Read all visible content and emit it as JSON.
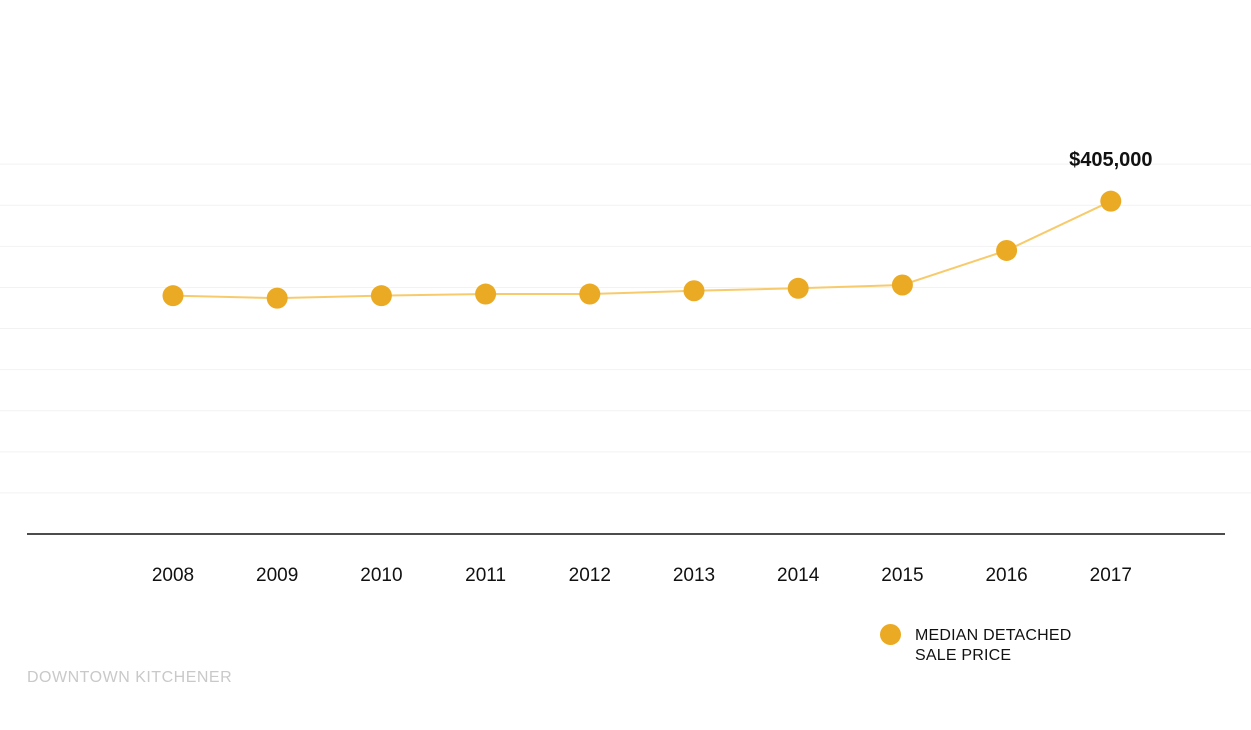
{
  "chart_data": {
    "type": "line",
    "categories": [
      "2008",
      "2009",
      "2010",
      "2011",
      "2012",
      "2013",
      "2014",
      "2015",
      "2016",
      "2017"
    ],
    "series": [
      {
        "name": "MEDIAN DETACHED SALE PRICE",
        "values": [
          290000,
          287000,
          290000,
          292000,
          292000,
          296000,
          299000,
          303000,
          345000,
          405000
        ]
      }
    ],
    "annotations": [
      {
        "category": "2017",
        "text": "$405,000"
      }
    ],
    "ylim": [
      0,
      550000
    ],
    "grid": true,
    "legend": "bottom-right",
    "xlabel": "",
    "ylabel": ""
  },
  "colors": {
    "marker": "#EBAA24",
    "line": "#F7CB6C",
    "grid": "#f2f2f2",
    "axis": "#111111"
  },
  "legend": {
    "label": "MEDIAN DETACHED SALE PRICE"
  },
  "source": "DOWNTOWN KITCHENER"
}
